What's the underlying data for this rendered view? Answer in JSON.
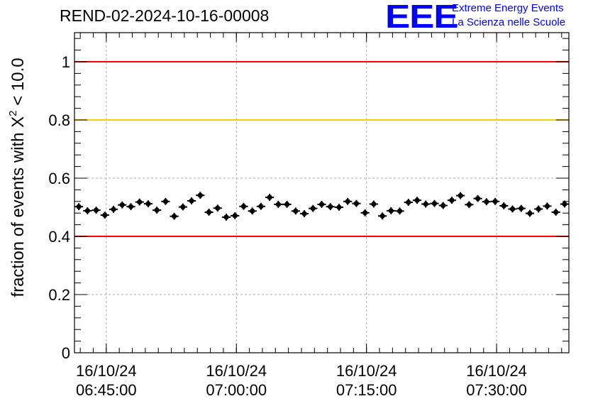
{
  "header": {
    "title": "REND-02-2024-10-16-00008",
    "logo_text": "EEE",
    "logo_line1": "Extreme Energy Events",
    "logo_line2": "La Scienza nelle Scuole"
  },
  "chart_data": {
    "type": "scatter",
    "title": "REND-02-2024-10-16-00008",
    "ylabel": "fraction of events with X² < 10.0",
    "xlabel": "",
    "x_start": "16/10/24 06:41:20",
    "x_end": "16/10/24 07:38:20",
    "x_ticks": [
      {
        "date": "16/10/24",
        "time": "06:45:00"
      },
      {
        "date": "16/10/24",
        "time": "07:00:00"
      },
      {
        "date": "16/10/24",
        "time": "07:15:00"
      },
      {
        "date": "16/10/24",
        "time": "07:30:00"
      }
    ],
    "ylim": [
      0,
      1.1
    ],
    "y_ticks": [
      "0",
      "0.2",
      "0.4",
      "0.6",
      "0.8",
      "1"
    ],
    "grid": true,
    "reference_lines": [
      {
        "y": 1.0,
        "color": "#ff0000"
      },
      {
        "y": 0.8,
        "color": "#ffcc00"
      },
      {
        "y": 0.4,
        "color": "#ff0000"
      }
    ],
    "marker_color": "#000000",
    "error_bar": 0.012,
    "series": [
      {
        "x": [
          "06:41:50",
          "06:42:50",
          "06:43:50",
          "06:44:50",
          "06:45:50",
          "06:46:50",
          "06:47:50",
          "06:48:50",
          "06:49:50",
          "06:50:50",
          "06:51:50",
          "06:52:50",
          "06:53:50",
          "06:54:50",
          "06:55:50",
          "06:56:50",
          "06:57:50",
          "06:58:50",
          "06:59:50",
          "07:00:50",
          "07:01:50",
          "07:02:50",
          "07:03:50",
          "07:04:50",
          "07:05:50",
          "07:06:50",
          "07:07:50",
          "07:08:50",
          "07:09:50",
          "07:10:50",
          "07:11:50",
          "07:12:50",
          "07:13:50",
          "07:14:50",
          "07:15:50",
          "07:16:50",
          "07:17:50",
          "07:18:50",
          "07:19:50",
          "07:20:50",
          "07:21:50",
          "07:22:50",
          "07:23:50",
          "07:24:50",
          "07:25:50",
          "07:26:50",
          "07:27:50",
          "07:28:50",
          "07:29:50",
          "07:30:50",
          "07:31:50",
          "07:32:50",
          "07:33:50",
          "07:34:50",
          "07:35:50",
          "07:36:50",
          "07:37:50"
        ],
        "values": [
          0.502,
          0.488,
          0.49,
          0.473,
          0.493,
          0.508,
          0.502,
          0.518,
          0.512,
          0.49,
          0.52,
          0.469,
          0.501,
          0.522,
          0.541,
          0.483,
          0.497,
          0.466,
          0.471,
          0.503,
          0.487,
          0.503,
          0.534,
          0.51,
          0.51,
          0.487,
          0.478,
          0.496,
          0.51,
          0.502,
          0.5,
          0.52,
          0.513,
          0.481,
          0.511,
          0.47,
          0.488,
          0.487,
          0.517,
          0.524,
          0.511,
          0.513,
          0.506,
          0.524,
          0.54,
          0.509,
          0.53,
          0.519,
          0.52,
          0.505,
          0.494,
          0.496,
          0.479,
          0.494,
          0.504,
          0.483,
          0.511
        ]
      }
    ]
  }
}
